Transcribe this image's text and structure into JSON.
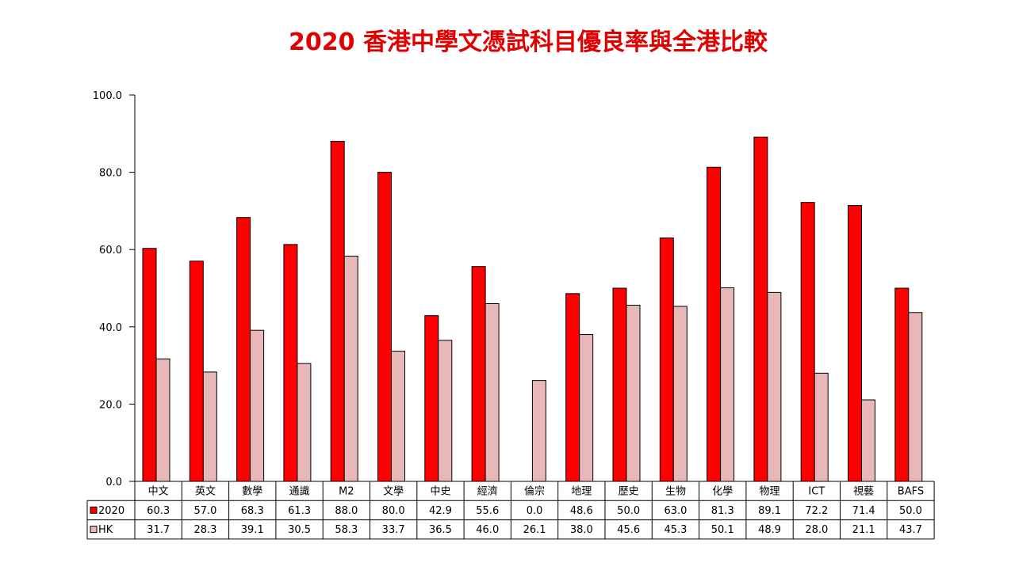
{
  "chart_data": {
    "type": "bar",
    "title": "2020 香港中學文憑試科目優良率與全港比較",
    "xlabel": "",
    "ylabel": "",
    "ylim": [
      0,
      100
    ],
    "yticks": [
      "0.0",
      "20.0",
      "40.0",
      "60.0",
      "80.0",
      "100.0"
    ],
    "categories": [
      "中文",
      "英文",
      "數學",
      "通識",
      "M2",
      "文學",
      "中史",
      "經濟",
      "倫宗",
      "地理",
      "歷史",
      "生物",
      "化學",
      "物理",
      "ICT",
      "視藝",
      "BAFS"
    ],
    "series": [
      {
        "name": "2020",
        "color": "#ff0000",
        "values": [
          60.3,
          57.0,
          68.3,
          61.3,
          88.0,
          80.0,
          42.9,
          55.6,
          0.0,
          48.6,
          50.0,
          63.0,
          81.3,
          89.1,
          72.2,
          71.4,
          50.0
        ],
        "labels": [
          "60.3",
          "57.0",
          "68.3",
          "61.3",
          "88.0",
          "80.0",
          "42.9",
          "55.6",
          "0.0",
          "48.6",
          "50.0",
          "63.0",
          "81.3",
          "89.1",
          "72.2",
          "71.4",
          "50.0"
        ]
      },
      {
        "name": "HK",
        "color": "#e8b8b8",
        "values": [
          31.7,
          28.3,
          39.1,
          30.5,
          58.3,
          33.7,
          36.5,
          46.0,
          26.1,
          38.0,
          45.6,
          45.3,
          50.1,
          48.9,
          28.0,
          21.1,
          43.7
        ],
        "labels": [
          "31.7",
          "28.3",
          "39.1",
          "30.5",
          "58.3",
          "33.7",
          "36.5",
          "46.0",
          "26.1",
          "38.0",
          "45.6",
          "45.3",
          "50.1",
          "48.9",
          "28.0",
          "21.1",
          "43.7"
        ]
      }
    ],
    "legend": "data-table",
    "grid": false
  }
}
